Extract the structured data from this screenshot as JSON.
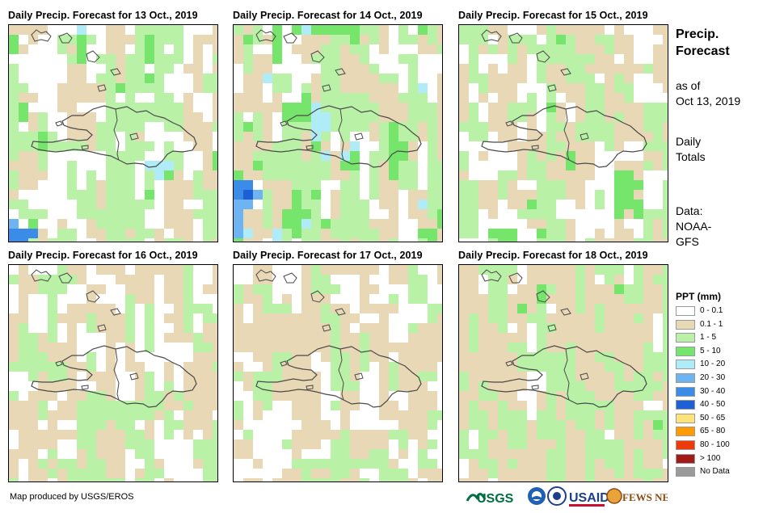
{
  "panels": [
    {
      "title": "Daily Precip. Forecast for 13 Oct., 2019",
      "seed": 13,
      "base": [
        0.34,
        0.22,
        0.34,
        0.08,
        0.02
      ]
    },
    {
      "title": "Daily Precip. Forecast for 14 Oct., 2019",
      "seed": 14,
      "base": [
        0.16,
        0.36,
        0.34,
        0.1,
        0.04
      ]
    },
    {
      "title": "Daily Precip. Forecast for 15 Oct., 2019",
      "seed": 15,
      "base": [
        0.26,
        0.36,
        0.34,
        0.03,
        0.01
      ]
    },
    {
      "title": "Daily Precip. Forecast for 16 Oct., 2019",
      "seed": 16,
      "base": [
        0.3,
        0.4,
        0.3,
        0.0,
        0.0
      ]
    },
    {
      "title": "Daily Precip. Forecast for 17 Oct., 2019",
      "seed": 17,
      "base": [
        0.34,
        0.42,
        0.24,
        0.0,
        0.0
      ]
    },
    {
      "title": "Daily Precip. Forecast for 18 Oct., 2019",
      "seed": 18,
      "base": [
        0.1,
        0.55,
        0.34,
        0.01,
        0.0
      ]
    }
  ],
  "sidebar": {
    "title_line1": "Precip.",
    "title_line2": "Forecast",
    "asof_line1": "as of",
    "asof_line2": "Oct 13, 2019",
    "totals_line1": "Daily",
    "totals_line2": "Totals",
    "data_line1": "Data:",
    "data_line2": "NOAA-",
    "data_line3": "GFS"
  },
  "legend": {
    "title": "PPT (mm)",
    "items": [
      {
        "label": "0 - 0.1",
        "color": "#ffffff"
      },
      {
        "label": "0.1 - 1",
        "color": "#e9d8b5"
      },
      {
        "label": "1 - 5",
        "color": "#b9f2a6"
      },
      {
        "label": "5 - 10",
        "color": "#76e56b"
      },
      {
        "label": "10 - 20",
        "color": "#b0ecf8"
      },
      {
        "label": "20 - 30",
        "color": "#6fb4f2"
      },
      {
        "label": "30 - 40",
        "color": "#3b8ce8"
      },
      {
        "label": "40 - 50",
        "color": "#1f5fd6"
      },
      {
        "label": "50 - 65",
        "color": "#ffe27a"
      },
      {
        "label": "65 - 80",
        "color": "#ff9a00"
      },
      {
        "label": "80 - 100",
        "color": "#ee3a0a"
      },
      {
        "label": "> 100",
        "color": "#a11a18"
      },
      {
        "label": "No Data",
        "color": "#9a9a9a"
      }
    ]
  },
  "footer": {
    "credit": "Map produced by USGS/EROS",
    "logo_usgs": "USGS",
    "logo_usaid": "USAID",
    "logo_fews": "FEWS NET"
  }
}
